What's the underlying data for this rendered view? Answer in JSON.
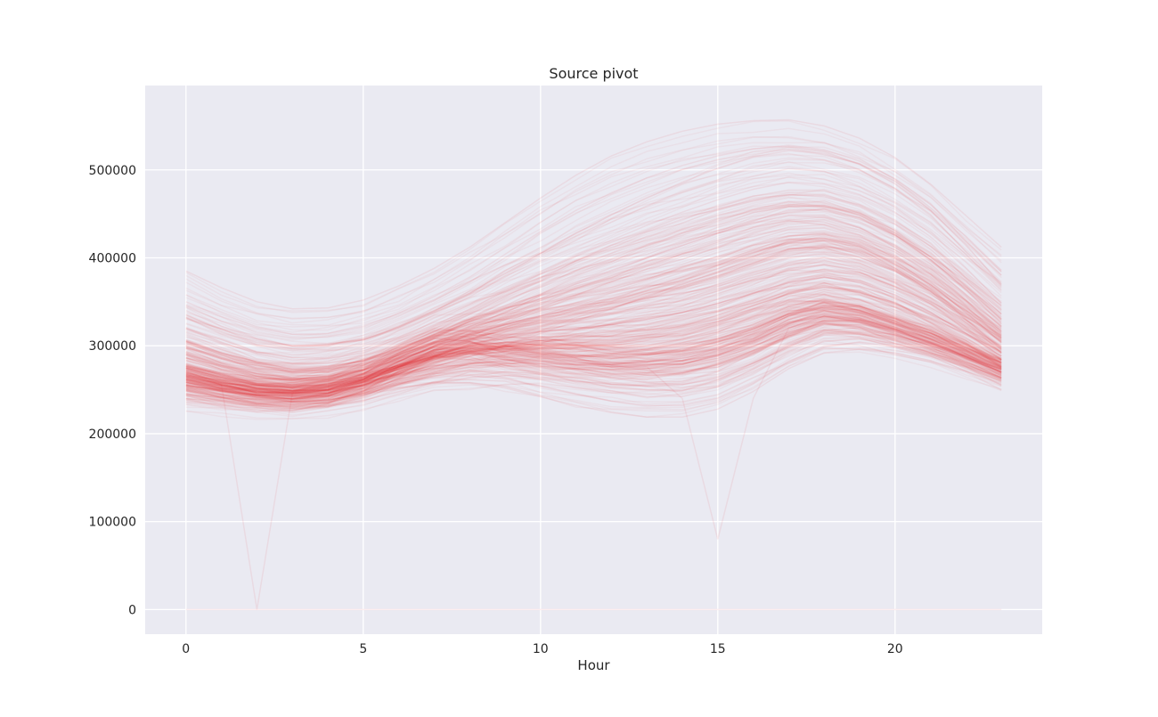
{
  "chart_data": {
    "type": "line",
    "title": "Source pivot",
    "xlabel": "Hour",
    "ylabel": "",
    "xlim": [
      -1.15,
      24.15
    ],
    "ylim": [
      -28000,
      596000
    ],
    "x_ticks": [
      0,
      5,
      10,
      15,
      20
    ],
    "y_ticks": [
      0,
      100000,
      200000,
      300000,
      400000,
      500000
    ],
    "x": [
      0,
      1,
      2,
      3,
      4,
      5,
      6,
      7,
      8,
      9,
      10,
      11,
      12,
      13,
      14,
      15,
      16,
      17,
      18,
      19,
      20,
      21,
      22,
      23
    ],
    "grid": true,
    "legend": "none",
    "line_color": "#e8141c",
    "background": "#eaeaf2",
    "num_series_approx": 365,
    "series": [
      {
        "values": [
          255000,
          248000,
          242000,
          240000,
          246000,
          262000,
          285000,
          302000,
          300000,
          288000,
          282000,
          278000,
          276000,
          278000,
          283000,
          292000,
          305000,
          325000,
          338000,
          332000,
          318000,
          305000,
          288000,
          270000
        ]
      },
      {
        "values": [
          262000,
          253000,
          247000,
          246000,
          252000,
          268000,
          292000,
          308000,
          305000,
          292000,
          286000,
          282000,
          280000,
          282000,
          288000,
          297000,
          310000,
          330000,
          342000,
          336000,
          322000,
          308000,
          291000,
          274000
        ]
      },
      {
        "values": [
          250000,
          244000,
          239000,
          237000,
          242000,
          256000,
          280000,
          296000,
          295000,
          284000,
          278000,
          274000,
          272000,
          274000,
          279000,
          288000,
          301000,
          320000,
          333000,
          328000,
          314000,
          301000,
          285000,
          267000
        ]
      },
      {
        "values": [
          268000,
          258000,
          251000,
          249000,
          254000,
          263000,
          276000,
          288000,
          293000,
          292000,
          288000,
          284000,
          281000,
          282000,
          286000,
          294000,
          306000,
          322000,
          331000,
          327000,
          316000,
          303000,
          289000,
          276000
        ]
      },
      {
        "values": [
          245000,
          240000,
          236000,
          235000,
          239000,
          248000,
          262000,
          274000,
          281000,
          283000,
          282000,
          280000,
          279000,
          281000,
          286000,
          295000,
          308000,
          326000,
          336000,
          330000,
          317000,
          303000,
          287000,
          268000
        ]
      },
      {
        "values": [
          280000,
          268000,
          259000,
          256000,
          259000,
          267000,
          279000,
          291000,
          300000,
          304000,
          306000,
          307000,
          308000,
          312000,
          318000,
          328000,
          342000,
          352000,
          350000,
          340000,
          326000,
          311000,
          295000,
          280000
        ]
      },
      {
        "values": [
          300000,
          286000,
          275000,
          270000,
          272000,
          280000,
          294000,
          310000,
          326000,
          342000,
          358000,
          372000,
          386000,
          400000,
          414000,
          428000,
          440000,
          448000,
          446000,
          434000,
          414000,
          388000,
          356000,
          322000
        ]
      },
      {
        "values": [
          320000,
          304000,
          291000,
          284000,
          285000,
          292000,
          306000,
          323000,
          342000,
          362000,
          382000,
          402000,
          420000,
          437000,
          452000,
          466000,
          478000,
          486000,
          484000,
          472000,
          452000,
          424000,
          388000,
          348000
        ]
      },
      {
        "values": [
          340000,
          322000,
          308000,
          300000,
          300000,
          307000,
          321000,
          339000,
          360000,
          382000,
          405000,
          428000,
          449000,
          468000,
          486000,
          502000,
          515000,
          522000,
          519000,
          506000,
          484000,
          454000,
          414000,
          370000
        ]
      },
      {
        "values": [
          385000,
          366000,
          350000,
          342000,
          343000,
          352000,
          368000,
          388000,
          412000,
          440000,
          468000,
          494000,
          516000,
          532000,
          544000,
          552000,
          556000,
          557000,
          550000,
          536000,
          514000,
          484000,
          448000,
          412000
        ]
      },
      {
        "values": [
          350000,
          333000,
          320000,
          313000,
          314000,
          322000,
          337000,
          356000,
          378000,
          404000,
          430000,
          454000,
          474000,
          491000,
          505000,
          516000,
          524000,
          528000,
          523000,
          510000,
          490000,
          461000,
          424000,
          384000
        ]
      },
      {
        "values": [
          268000,
          259000,
          252000,
          249000,
          251000,
          258000,
          268000,
          278000,
          284000,
          285000,
          280000,
          272000,
          264000,
          258000,
          256000,
          262000,
          278000,
          300000,
          318000,
          320000,
          312000,
          300000,
          286000,
          270000
        ]
      },
      {
        "values": [
          258000,
          250000,
          244000,
          242000,
          244000,
          250000,
          258000,
          264000,
          266000,
          262000,
          254000,
          245000,
          237000,
          232000,
          232000,
          240000,
          258000,
          282000,
          300000,
          304000,
          298000,
          288000,
          276000,
          262000
        ]
      },
      {
        "values": [
          248000,
          242000,
          238000,
          236000,
          238000,
          244000,
          252000,
          258000,
          258000,
          252000,
          242000,
          232000,
          224000,
          219000,
          219000,
          228000,
          248000,
          274000,
          292000,
          296000,
          292000,
          283000,
          271000,
          256000
        ]
      },
      {
        "values": [
          272000,
          262000,
          255000,
          252000,
          255000,
          264000,
          278000,
          292000,
          300000,
          300000,
          294000,
          286000,
          278000,
          272000,
          270000,
          276000,
          292000,
          314000,
          328000,
          326000,
          316000,
          302000,
          288000,
          273000
        ]
      },
      {
        "values": [
          256000,
          249000,
          244000,
          242000,
          246000,
          258000,
          276000,
          294000,
          306000,
          312000,
          316000,
          320000,
          324000,
          330000,
          338000,
          348000,
          360000,
          372000,
          378000,
          372000,
          358000,
          338000,
          314000,
          288000
        ]
      },
      {
        "values": [
          264000,
          255000,
          249000,
          247000,
          251000,
          263000,
          282000,
          300000,
          314000,
          324000,
          334000,
          344000,
          354000,
          366000,
          378000,
          392000,
          406000,
          418000,
          422000,
          414000,
          396000,
          370000,
          338000,
          304000
        ]
      },
      {
        "values": [
          276000,
          266000,
          258000,
          254000,
          257000,
          268000,
          286000,
          305000,
          322000,
          338000,
          354000,
          370000,
          385000,
          400000,
          414000,
          428000,
          442000,
          454000,
          456000,
          446000,
          426000,
          398000,
          364000,
          326000
        ]
      },
      {
        "values": [
          252000,
          246000,
          241000,
          239000,
          243000,
          255000,
          275000,
          296000,
          308000,
          310000,
          306000,
          300000,
          294000,
          290000,
          290000,
          298000,
          314000,
          334000,
          346000,
          340000,
          324000,
          308000,
          290000,
          272000
        ]
      },
      {
        "values": [
          260000,
          251000,
          245000,
          243000,
          246000,
          255000,
          270000,
          286000,
          296000,
          300000,
          300000,
          298000,
          296000,
          296000,
          300000,
          308000,
          320000,
          336000,
          344000,
          338000,
          325000,
          310000,
          293000,
          276000
        ]
      },
      {
        "values": [
          244000,
          238000,
          234000,
          233000,
          236000,
          244000,
          256000,
          268000,
          276000,
          280000,
          280000,
          278000,
          276000,
          276000,
          280000,
          288000,
          300000,
          316000,
          326000,
          322000,
          312000,
          300000,
          285000,
          266000
        ]
      },
      {
        "values": [
          290000,
          278000,
          268000,
          263000,
          264000,
          271000,
          284000,
          298000,
          312000,
          324000,
          334000,
          342000,
          348000,
          354000,
          360000,
          368000,
          378000,
          388000,
          392000,
          386000,
          372000,
          352000,
          326000,
          298000
        ]
      },
      {
        "values": [
          236000,
          232000,
          229000,
          228000,
          231000,
          238000,
          248000,
          258000,
          264000,
          266000,
          264000,
          260000,
          256000,
          254000,
          256000,
          264000,
          280000,
          300000,
          312000,
          310000,
          302000,
          292000,
          279000,
          262000
        ]
      },
      {
        "values": [
          306000,
          292000,
          280000,
          274000,
          275000,
          283000,
          298000,
          316000,
          336000,
          356000,
          376000,
          396000,
          414000,
          430000,
          444000,
          456000,
          466000,
          472000,
          470000,
          458000,
          438000,
          410000,
          374000,
          336000
        ]
      },
      {
        "values": [
          274000,
          264000,
          256000,
          252000,
          254000,
          262000,
          276000,
          290000,
          302000,
          310000,
          316000,
          320000,
          324000,
          330000,
          338000,
          348000,
          360000,
          372000,
          378000,
          372000,
          358000,
          338000,
          314000,
          288000
        ]
      },
      {
        "values": [
          258000,
          252000,
          248000,
          246000,
          248000,
          254000,
          264000,
          276000,
          288000,
          300000,
          314000,
          328000,
          342000,
          356000,
          370000,
          384000,
          398000,
          410000,
          414000,
          406000,
          388000,
          362000,
          330000,
          296000
        ]
      },
      {
        "values": [
          266000,
          256000,
          0,
          246000,
          250000,
          262000,
          282000,
          302000,
          308000,
          300000,
          290000,
          282000,
          278000,
          278000,
          282000,
          290000,
          304000,
          324000,
          336000,
          331000,
          318000,
          304000,
          288000,
          270000
        ]
      },
      {
        "values": [
          262000,
          254000,
          248000,
          246000,
          250000,
          262000,
          282000,
          300000,
          304000,
          296000,
          288000,
          282000,
          278000,
          276000,
          240000,
          80000,
          240000,
          320000,
          334000,
          330000,
          318000,
          304000,
          288000,
          270000
        ]
      },
      {
        "values": [
          0,
          0,
          0,
          0,
          0,
          0,
          0,
          0,
          0,
          0,
          0,
          0,
          0,
          0,
          0,
          0,
          0,
          0,
          0,
          0,
          0,
          0,
          0,
          0
        ]
      }
    ]
  }
}
